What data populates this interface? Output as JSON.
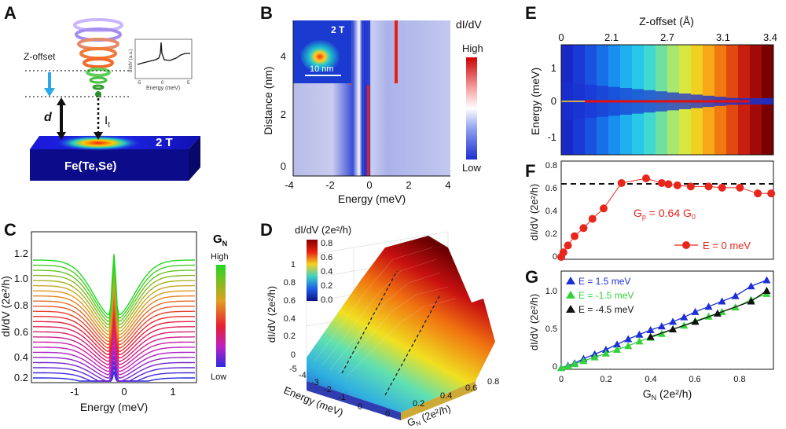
{
  "panels": {
    "A": {
      "label": "A",
      "z_offset_label": "Z-offset",
      "d_label": "d",
      "it_label": "I",
      "it_sub": "t",
      "field_label": "2 T",
      "material_label": "Fe(Te,Se)",
      "inset_ylabel": "dI/dV (a.u.)",
      "inset_xlabel": "Energy (meV)",
      "inset_ticks": [
        "-5",
        "0",
        "5"
      ]
    },
    "B": {
      "label": "B",
      "colorbar_title": "dI/dV",
      "colorbar_high": "High",
      "colorbar_low": "Low",
      "inset_field": "2 T",
      "inset_scale": "10 nm",
      "xlabel": "Energy (meV)",
      "ylabel": "Distance (nm)",
      "xticks": [
        "-4",
        "-2",
        "0",
        "2",
        "4"
      ],
      "yticks": [
        "0",
        "2",
        "4"
      ]
    },
    "C": {
      "label": "C",
      "colorbar_title": "G",
      "colorbar_sub": "N",
      "colorbar_high": "High",
      "colorbar_low": "Low",
      "xlabel": "Energy (meV)",
      "ylabel": "dI/dV (2e²/h)",
      "xticks": [
        "-1",
        "0",
        "1"
      ],
      "yticks": [
        "0.2",
        "0.4",
        "0.6",
        "0.8",
        "1.0",
        "1.2"
      ]
    },
    "D": {
      "label": "D",
      "colorbar_title": "dI/dV (2e²/h)",
      "colorbar_ticks": [
        "0.8",
        "0.6",
        "0.4",
        "0.2",
        "0.0"
      ],
      "zlabel": "dI/dV (2e²/h)",
      "zticks": [
        "0",
        "0.2",
        "0.4",
        "0.6",
        "0.8",
        "1"
      ],
      "energy_label": "Energy (meV)",
      "energy_ticks": [
        "-5",
        "-4",
        "-3",
        "-2",
        "-1",
        "0"
      ],
      "gn_label": "G",
      "gn_sub": "N",
      "gn_unit": " (2e²/h)",
      "gn_ticks": [
        "0",
        "0.2",
        "0.4",
        "0.6",
        "0.8"
      ]
    },
    "E": {
      "label": "E",
      "top_label": "Z-offset (Å)",
      "top_ticks": [
        "0",
        "2.1",
        "2.7",
        "3.1",
        "3.4"
      ],
      "ylabel": "Energy (meV)",
      "yticks": [
        "1",
        "0",
        "-1"
      ]
    },
    "F": {
      "label": "F",
      "ylabel": "dI/dV (2e²/h)",
      "yticks": [
        "0",
        "0.2",
        "0.4",
        "0.6",
        "0.8"
      ],
      "annotation_main": "G",
      "annotation_sub": "p",
      "annotation_rest": " = 0.64 G",
      "annotation_sub2": "0",
      "legend": "E = 0 meV"
    },
    "G": {
      "label": "G",
      "ylabel": "dI/dV (2e²/h)",
      "yticks": [
        "0",
        "0.5",
        "1.0"
      ],
      "xlabel_main": "G",
      "xlabel_sub": "N",
      "xlabel_unit": " (2e²/h)",
      "xticks": [
        "0",
        "0.2",
        "0.4",
        "0.6",
        "0.8"
      ],
      "legend": [
        "E =  1.5 meV",
        "E =  -1.5 meV",
        "E = -4.5 meV"
      ]
    }
  },
  "colors": {
    "F_series": "#e8261c",
    "G_blue": "#1c2fd6",
    "G_green": "#33d13a",
    "G_black": "#111111"
  },
  "chart_data": [
    {
      "type": "scatter",
      "panel": "F",
      "x": [
        0,
        0.01,
        0.03,
        0.06,
        0.1,
        0.14,
        0.19,
        0.27,
        0.38,
        0.45,
        0.48,
        0.52,
        0.58,
        0.66,
        0.72,
        0.8,
        0.88,
        0.94
      ],
      "y": [
        0.02,
        0.06,
        0.12,
        0.2,
        0.27,
        0.35,
        0.44,
        0.66,
        0.7,
        0.66,
        0.65,
        0.64,
        0.63,
        0.63,
        0.62,
        0.62,
        0.57,
        0.57
      ],
      "xlim": [
        0,
        0.95
      ],
      "ylim": [
        0,
        0.85
      ],
      "reference_line_y": 0.64,
      "series_name": "E = 0 meV"
    },
    {
      "type": "scatter",
      "panel": "G",
      "xlim": [
        0,
        0.95
      ],
      "ylim": [
        0,
        1.3
      ],
      "series": [
        {
          "name": "E =  1.5 meV",
          "color": "#1c2fd6",
          "x": [
            0,
            0.03,
            0.06,
            0.1,
            0.15,
            0.2,
            0.25,
            0.3,
            0.35,
            0.4,
            0.45,
            0.5,
            0.55,
            0.6,
            0.66,
            0.72,
            0.78,
            0.85,
            0.92
          ],
          "y": [
            0.02,
            0.05,
            0.08,
            0.14,
            0.2,
            0.26,
            0.33,
            0.4,
            0.46,
            0.52,
            0.57,
            0.63,
            0.69,
            0.76,
            0.83,
            0.9,
            0.97,
            1.1,
            1.18
          ]
        },
        {
          "name": "E =  -1.5 meV",
          "color": "#33d13a",
          "x": [
            0,
            0.03,
            0.06,
            0.1,
            0.15,
            0.2,
            0.25,
            0.3,
            0.35,
            0.4,
            0.45,
            0.5,
            0.55,
            0.6,
            0.66,
            0.72,
            0.78,
            0.85,
            0.92
          ],
          "y": [
            0.02,
            0.04,
            0.07,
            0.11,
            0.16,
            0.21,
            0.26,
            0.31,
            0.37,
            0.42,
            0.47,
            0.53,
            0.58,
            0.64,
            0.7,
            0.76,
            0.82,
            0.92,
            1.0
          ]
        },
        {
          "name": "E = -4.5 meV",
          "color": "#111111",
          "x": [
            0.4,
            0.5,
            0.6,
            0.7,
            0.85,
            0.92
          ],
          "y": [
            0.43,
            0.53,
            0.63,
            0.74,
            0.9,
            1.04
          ]
        }
      ]
    }
  ]
}
